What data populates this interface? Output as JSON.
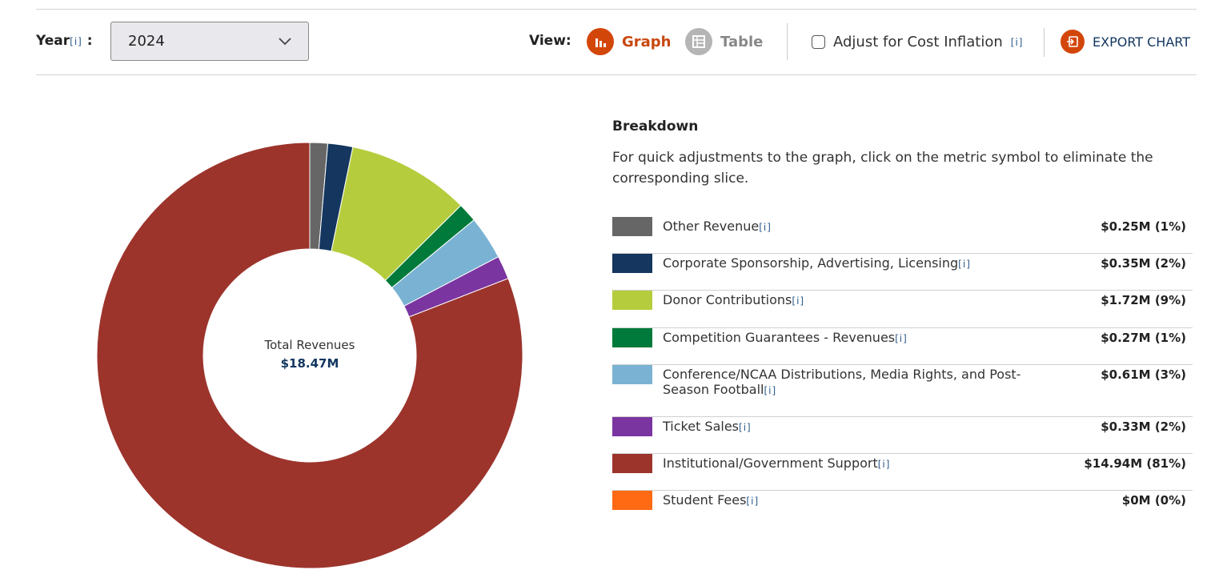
{
  "toolbar": {
    "year_label": "Year",
    "info": "[i]",
    "year_value": "2024",
    "view_label": "View:",
    "graph_label": "Graph",
    "table_label": "Table",
    "inflation_label": "Adjust for Cost Inflation",
    "export_label": "EXPORT CHART",
    "inflation_checked": false
  },
  "colors": {
    "accent": "#d3460a",
    "navy": "#12365f"
  },
  "legend": {
    "title": "Breakdown",
    "description": "For quick adjustments to the graph, click on the metric symbol to eliminate the corresponding slice."
  },
  "chart_data": {
    "type": "pie",
    "donut": true,
    "center_label": "Total Revenues",
    "center_value": "$18.47M",
    "unit": "$M",
    "slices": [
      {
        "name": "Other Revenue",
        "value": 0.25,
        "display": "$0.25M (1%)",
        "color": "#666666"
      },
      {
        "name": "Corporate Sponsorship, Advertising, Licensing",
        "value": 0.35,
        "display": "$0.35M (2%)",
        "color": "#14365f"
      },
      {
        "name": "Donor Contributions",
        "value": 1.72,
        "display": "$1.72M (9%)",
        "color": "#b5cd3d"
      },
      {
        "name": "Competition Guarantees - Revenues",
        "value": 0.27,
        "display": "$0.27M (1%)",
        "color": "#007a3a"
      },
      {
        "name": "Conference/NCAA Distributions, Media Rights, and Post-Season Football",
        "value": 0.61,
        "display": "$0.61M (3%)",
        "color": "#7ab2d3"
      },
      {
        "name": "Ticket Sales",
        "value": 0.33,
        "display": "$0.33M (2%)",
        "color": "#7a35a0"
      },
      {
        "name": "Institutional/Government Support",
        "value": 14.94,
        "display": "$14.94M (81%)",
        "color": "#9c342c"
      },
      {
        "name": "Student Fees",
        "value": 0,
        "display": "$0M (0%)",
        "color": "#ff6a13"
      }
    ]
  }
}
